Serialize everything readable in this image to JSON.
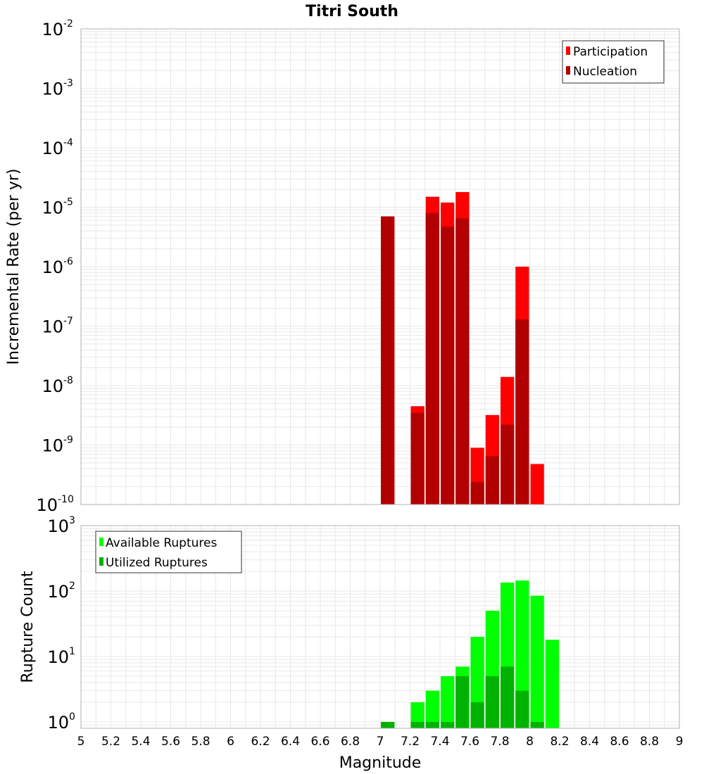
{
  "title": "Titri South",
  "xlabel": "Magnitude",
  "colors": {
    "participation": "#ff0000",
    "nucleation": "#b20000",
    "available": "#00ff00",
    "utilized": "#00b200",
    "grid": "#e8e8e8",
    "border": "#b0b0b0"
  },
  "chart_data": [
    {
      "type": "bar",
      "scale": "log",
      "ylabel": "Incremental Rate (per yr)",
      "xlim": [
        5,
        9
      ],
      "ylim": [
        1e-10,
        0.01
      ],
      "bin_width": 0.1,
      "legend_position": "top-right",
      "y_ticks": [
        {
          "base": "10",
          "exp": "-2"
        },
        {
          "base": "10",
          "exp": "-3"
        },
        {
          "base": "10",
          "exp": "-4"
        },
        {
          "base": "10",
          "exp": "-5"
        },
        {
          "base": "10",
          "exp": "-6"
        },
        {
          "base": "10",
          "exp": "-7"
        },
        {
          "base": "10",
          "exp": "-8"
        },
        {
          "base": "10",
          "exp": "-9"
        },
        {
          "base": "10",
          "exp": "-10"
        }
      ],
      "series": [
        {
          "name": "Participation",
          "color": "#ff0000",
          "points": [
            {
              "x": 7.05,
              "y": 7e-06
            },
            {
              "x": 7.25,
              "y": 4.5e-09
            },
            {
              "x": 7.35,
              "y": 1.5e-05
            },
            {
              "x": 7.45,
              "y": 1.2e-05
            },
            {
              "x": 7.55,
              "y": 1.8e-05
            },
            {
              "x": 7.65,
              "y": 9e-10
            },
            {
              "x": 7.75,
              "y": 3.2e-09
            },
            {
              "x": 7.85,
              "y": 1.4e-08
            },
            {
              "x": 7.95,
              "y": 1e-06
            },
            {
              "x": 8.05,
              "y": 4.8e-10
            }
          ]
        },
        {
          "name": "Nucleation",
          "color": "#b20000",
          "points": [
            {
              "x": 7.05,
              "y": 7e-06
            },
            {
              "x": 7.25,
              "y": 3.5e-09
            },
            {
              "x": 7.35,
              "y": 8e-06
            },
            {
              "x": 7.45,
              "y": 4.7e-06
            },
            {
              "x": 7.55,
              "y": 6.5e-06
            },
            {
              "x": 7.65,
              "y": 2.4e-10
            },
            {
              "x": 7.75,
              "y": 6.5e-10
            },
            {
              "x": 7.85,
              "y": 2.2e-09
            },
            {
              "x": 7.95,
              "y": 1.3e-07
            }
          ]
        }
      ]
    },
    {
      "type": "bar",
      "scale": "log",
      "ylabel": "Rupture Count",
      "xlim": [
        5,
        9
      ],
      "ylim": [
        0.8,
        1000
      ],
      "bin_width": 0.1,
      "legend_position": "top-left",
      "y_ticks": [
        {
          "value": 1000,
          "base": "10",
          "exp": "3"
        },
        {
          "value": 100,
          "base": "10",
          "exp": "2"
        },
        {
          "value": 10,
          "base": "10",
          "exp": "1"
        },
        {
          "value": 1,
          "base": "10",
          "exp": "0"
        }
      ],
      "x_ticks": [
        "5",
        "5.2",
        "5.4",
        "5.6",
        "5.8",
        "6",
        "6.2",
        "6.4",
        "6.6",
        "6.8",
        "7",
        "7.2",
        "7.4",
        "7.6",
        "7.8",
        "8",
        "8.2",
        "8.4",
        "8.6",
        "8.8",
        "9"
      ],
      "series": [
        {
          "name": "Available Ruptures",
          "color": "#00ff00",
          "points": [
            {
              "x": 7.05,
              "y": 1
            },
            {
              "x": 7.25,
              "y": 2
            },
            {
              "x": 7.35,
              "y": 3
            },
            {
              "x": 7.45,
              "y": 5
            },
            {
              "x": 7.55,
              "y": 7
            },
            {
              "x": 7.65,
              "y": 20
            },
            {
              "x": 7.75,
              "y": 50
            },
            {
              "x": 7.85,
              "y": 135
            },
            {
              "x": 7.95,
              "y": 145
            },
            {
              "x": 8.05,
              "y": 85
            },
            {
              "x": 8.15,
              "y": 18
            }
          ]
        },
        {
          "name": "Utilized Ruptures",
          "color": "#00b200",
          "points": [
            {
              "x": 7.05,
              "y": 1
            },
            {
              "x": 7.25,
              "y": 1
            },
            {
              "x": 7.35,
              "y": 1
            },
            {
              "x": 7.45,
              "y": 1
            },
            {
              "x": 7.55,
              "y": 5
            },
            {
              "x": 7.65,
              "y": 2
            },
            {
              "x": 7.75,
              "y": 5
            },
            {
              "x": 7.85,
              "y": 7
            },
            {
              "x": 7.95,
              "y": 3
            },
            {
              "x": 8.05,
              "y": 1
            }
          ]
        }
      ]
    }
  ]
}
